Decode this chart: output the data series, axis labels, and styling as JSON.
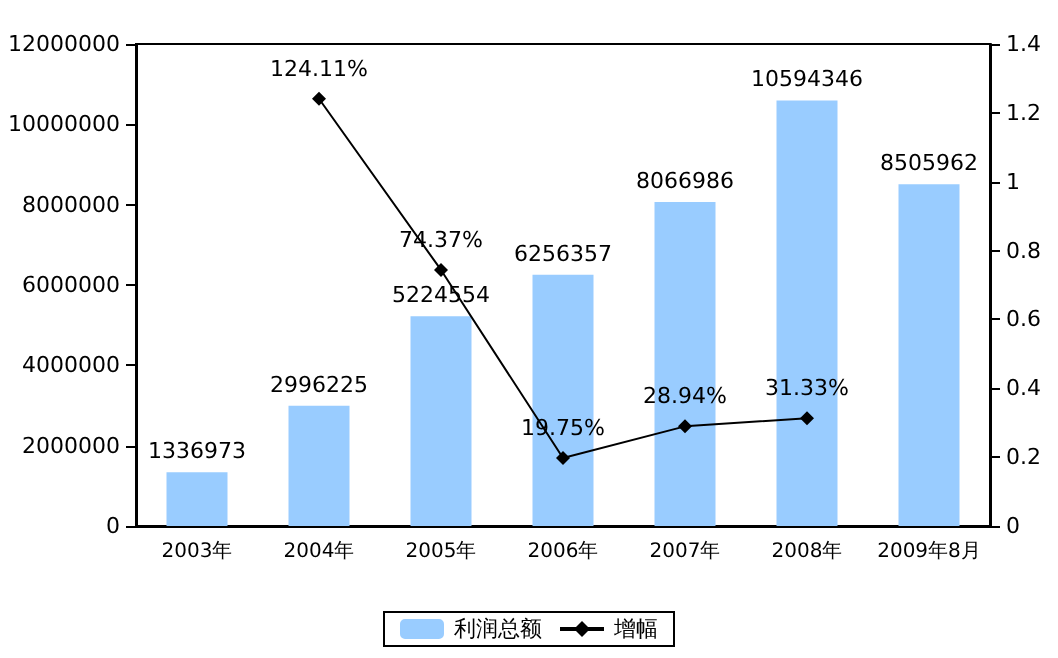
{
  "chart_data": {
    "type": "bar",
    "categories": [
      "2003年",
      "2004年",
      "2005年",
      "2006年",
      "2007年",
      "2008年",
      "2009年8月"
    ],
    "series": [
      {
        "name": "利润总额",
        "color": "#99ccff",
        "values": [
          1336973,
          2996225,
          5224554,
          6256357,
          8066986,
          10594346,
          8505962
        ]
      },
      {
        "name": "增幅",
        "type": "line",
        "axis": "y2",
        "color": "#000000",
        "marker": "diamond",
        "values": [
          null,
          1.2411,
          0.7437,
          0.1975,
          0.2894,
          0.3133,
          null
        ],
        "value_labels": [
          null,
          "124.11%",
          "74.37%",
          "19.75%",
          "28.94%",
          "31.33%",
          null
        ]
      }
    ],
    "data_labels": true,
    "ylim": [
      0,
      12000000
    ],
    "yticks": [
      0,
      2000000,
      4000000,
      6000000,
      8000000,
      10000000,
      12000000
    ],
    "y2lim": [
      0,
      1.4
    ],
    "y2ticks": [
      0,
      0.2,
      0.4,
      0.6,
      0.8,
      1,
      1.2,
      1.4
    ],
    "grid": false,
    "legend": "bottom"
  }
}
